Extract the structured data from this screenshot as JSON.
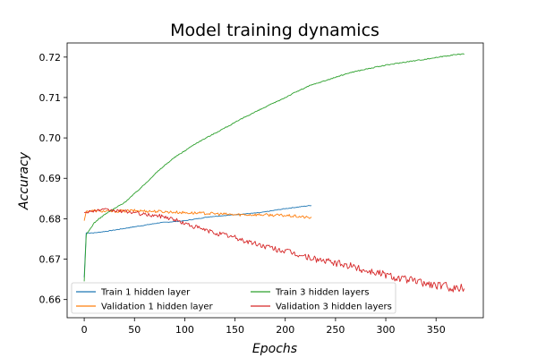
{
  "chart_data": {
    "type": "line",
    "title": "Model training dynamics",
    "xlabel": "Epochs",
    "ylabel": "Accuracy",
    "xlim": [
      -17,
      397
    ],
    "ylim": [
      0.6555,
      0.7235
    ],
    "xticks": [
      0,
      50,
      100,
      150,
      200,
      250,
      300,
      350
    ],
    "yticks": [
      0.66,
      0.67,
      0.68,
      0.69,
      0.7,
      0.71,
      0.72
    ],
    "grid": false,
    "legend": {
      "placement": "lower-left",
      "columns": 2
    },
    "series": [
      {
        "name": "Train 1 hidden layer",
        "color": "#1f77b4",
        "points": [
          [
            0,
            0.6655
          ],
          [
            2,
            0.6765
          ],
          [
            10,
            0.6765
          ],
          [
            25,
            0.677
          ],
          [
            50,
            0.678
          ],
          [
            75,
            0.679
          ],
          [
            100,
            0.6795
          ],
          [
            125,
            0.6805
          ],
          [
            150,
            0.681
          ],
          [
            175,
            0.6815
          ],
          [
            200,
            0.6825
          ],
          [
            226,
            0.6833
          ]
        ]
      },
      {
        "name": "Validation 1 hidden layer",
        "color": "#ff7f0e",
        "points": [
          [
            0,
            0.6795
          ],
          [
            2,
            0.6818
          ],
          [
            10,
            0.682
          ],
          [
            25,
            0.6818
          ],
          [
            50,
            0.682
          ],
          [
            75,
            0.6818
          ],
          [
            100,
            0.6815
          ],
          [
            125,
            0.6813
          ],
          [
            150,
            0.681
          ],
          [
            175,
            0.681
          ],
          [
            200,
            0.6808
          ],
          [
            215,
            0.6805
          ],
          [
            226,
            0.6802
          ]
        ]
      },
      {
        "name": "Train 3 hidden layers",
        "color": "#2ca02c",
        "points": [
          [
            0,
            0.6645
          ],
          [
            2,
            0.676
          ],
          [
            10,
            0.679
          ],
          [
            20,
            0.681
          ],
          [
            30,
            0.6825
          ],
          [
            40,
            0.684
          ],
          [
            50,
            0.6862
          ],
          [
            60,
            0.6885
          ],
          [
            70,
            0.691
          ],
          [
            80,
            0.6932
          ],
          [
            90,
            0.6952
          ],
          [
            100,
            0.6968
          ],
          [
            110,
            0.6985
          ],
          [
            125,
            0.7005
          ],
          [
            140,
            0.7025
          ],
          [
            150,
            0.7038
          ],
          [
            160,
            0.7052
          ],
          [
            175,
            0.707
          ],
          [
            190,
            0.7088
          ],
          [
            200,
            0.71
          ],
          [
            210,
            0.7113
          ],
          [
            225,
            0.713
          ],
          [
            240,
            0.7142
          ],
          [
            250,
            0.715
          ],
          [
            265,
            0.7162
          ],
          [
            280,
            0.717
          ],
          [
            300,
            0.718
          ],
          [
            320,
            0.7188
          ],
          [
            340,
            0.7195
          ],
          [
            355,
            0.7201
          ],
          [
            365,
            0.7205
          ],
          [
            378,
            0.7208
          ]
        ]
      },
      {
        "name": "Validation 3 hidden layers",
        "color": "#d62728",
        "points": [
          [
            0,
            0.6815
          ],
          [
            5,
            0.6818
          ],
          [
            10,
            0.682
          ],
          [
            20,
            0.6822
          ],
          [
            30,
            0.682
          ],
          [
            40,
            0.6818
          ],
          [
            50,
            0.6815
          ],
          [
            60,
            0.681
          ],
          [
            70,
            0.6808
          ],
          [
            80,
            0.6805
          ],
          [
            90,
            0.6798
          ],
          [
            100,
            0.6788
          ],
          [
            110,
            0.678
          ],
          [
            120,
            0.6772
          ],
          [
            130,
            0.6765
          ],
          [
            140,
            0.676
          ],
          [
            150,
            0.6753
          ],
          [
            160,
            0.6745
          ],
          [
            175,
            0.6735
          ],
          [
            190,
            0.6725
          ],
          [
            200,
            0.672
          ],
          [
            210,
            0.6713
          ],
          [
            225,
            0.6703
          ],
          [
            240,
            0.6695
          ],
          [
            250,
            0.669
          ],
          [
            265,
            0.6683
          ],
          [
            280,
            0.6672
          ],
          [
            290,
            0.6668
          ],
          [
            300,
            0.6662
          ],
          [
            310,
            0.6655
          ],
          [
            320,
            0.665
          ],
          [
            330,
            0.6645
          ],
          [
            340,
            0.664
          ],
          [
            350,
            0.6635
          ],
          [
            360,
            0.6633
          ],
          [
            370,
            0.6628
          ],
          [
            378,
            0.663
          ]
        ]
      }
    ]
  }
}
